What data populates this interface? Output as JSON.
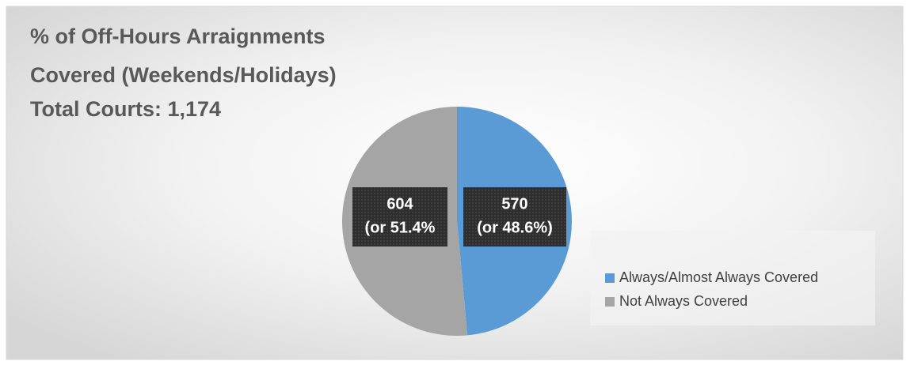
{
  "chart_data": {
    "type": "pie",
    "title": [
      "% of Off-Hours Arraignments",
      "Covered (Weekends/Holidays)",
      "Total Courts: 1,174"
    ],
    "categories": [
      "Always/Almost Always Covered",
      "Not Always Covered"
    ],
    "values": [
      570,
      604
    ],
    "value_labels": [
      [
        "570",
        "(or 48.6%)"
      ],
      [
        "604",
        "(or 51.4%"
      ]
    ],
    "colors": [
      "#5b9bd5",
      "#a5a5a5"
    ],
    "legend": "right"
  }
}
